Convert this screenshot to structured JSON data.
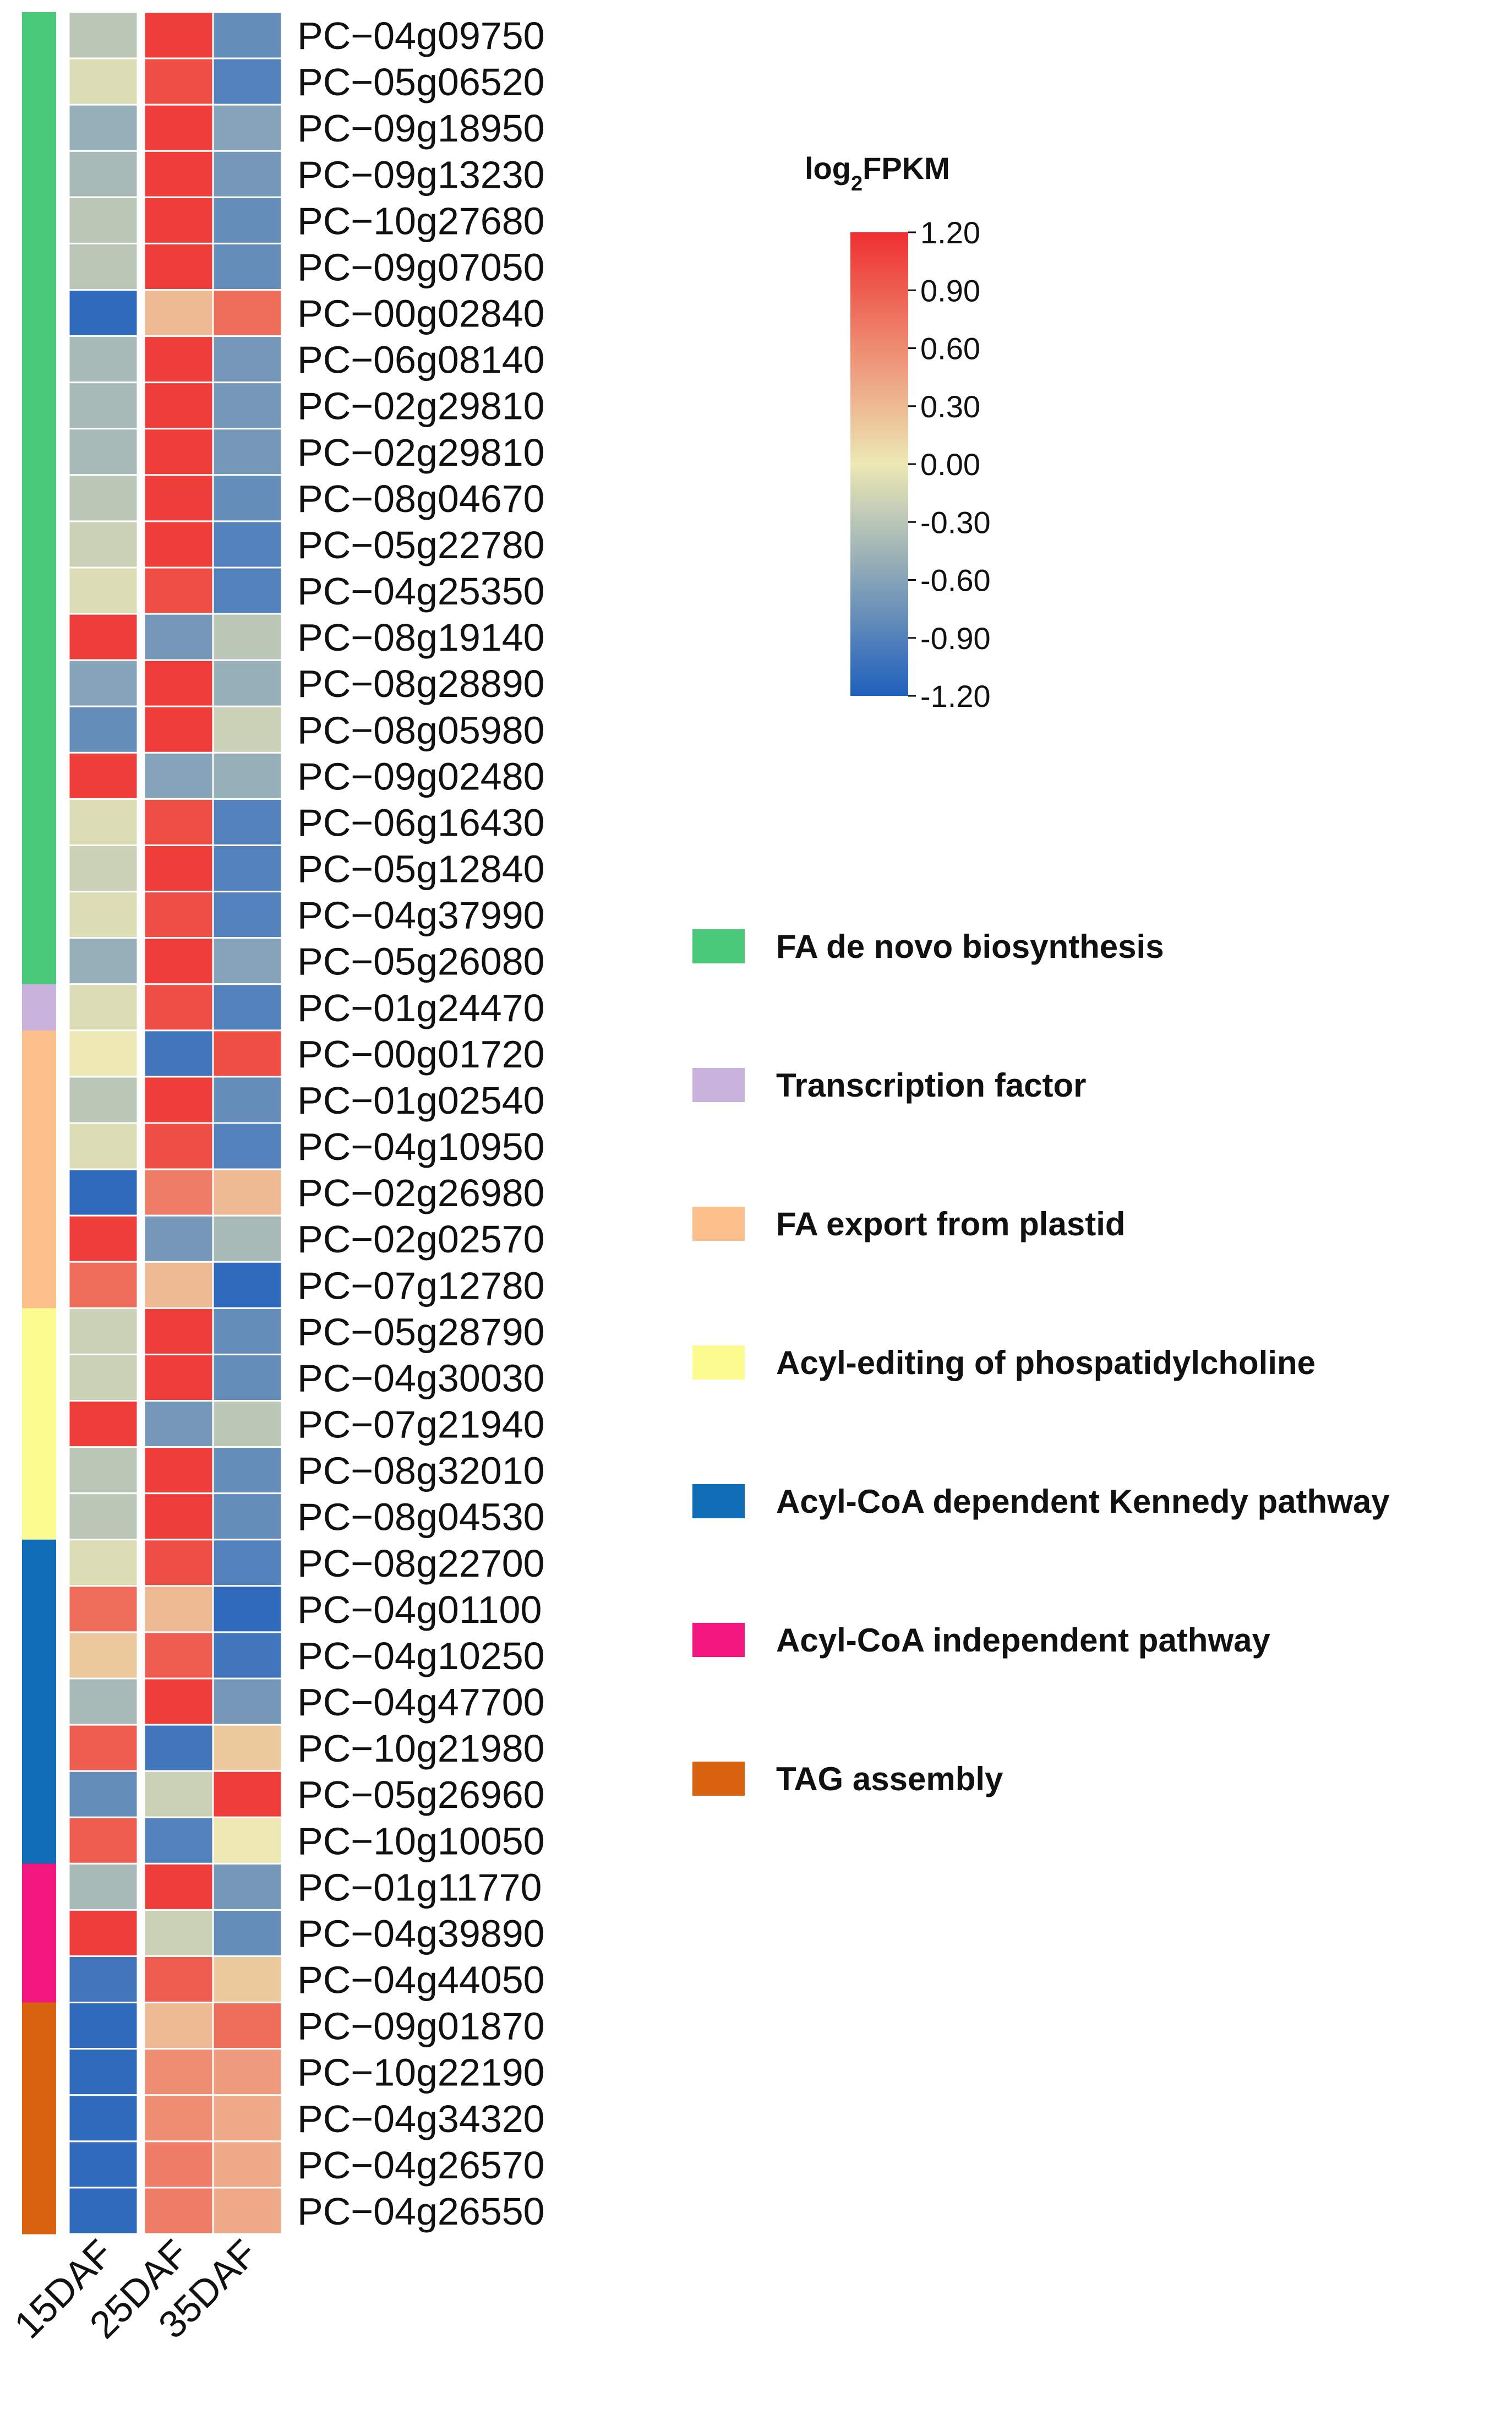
{
  "chart_data": {
    "type": "heatmap",
    "legend_title_main": "log",
    "legend_title_sub": "2",
    "legend_title_rest": "FPKM",
    "color_scale": {
      "min": -1.2,
      "max": 1.2,
      "low_color": "#1f5fbd",
      "mid_color": "#ede8b4",
      "high_color": "#ef2f2f",
      "ticks": [
        "1.20",
        "0.90",
        "0.60",
        "0.30",
        "0.00",
        "-0.30",
        "-0.60",
        "-0.90",
        "-1.20"
      ]
    },
    "columns": [
      "15DAF",
      "25DAF",
      "35DAF"
    ],
    "categories": [
      {
        "name": "FA de novo biosynthesis",
        "color": "#4ac97a"
      },
      {
        "name": "Transcription factor",
        "color": "#c9b3dc"
      },
      {
        "name": "FA export from plastid",
        "color": "#fbbf8c"
      },
      {
        "name": "Acyl-editing of phospatidylcholine",
        "color": "#fbfb90"
      },
      {
        "name": "Acyl-CoA dependent Kennedy pathway",
        "color": "#0f6db8"
      },
      {
        "name": "Acyl-CoA independent pathway",
        "color": "#f2167e"
      },
      {
        "name": "TAG assembly",
        "color": "#d9620f"
      }
    ],
    "rows": [
      {
        "gene": "PC−04g09750",
        "category": 0,
        "values": [
          -0.3,
          1.1,
          -0.8
        ]
      },
      {
        "gene": "PC−05g06520",
        "category": 0,
        "values": [
          -0.1,
          1.0,
          -0.9
        ]
      },
      {
        "gene": "PC−09g18950",
        "category": 0,
        "values": [
          -0.5,
          1.1,
          -0.6
        ]
      },
      {
        "gene": "PC−09g13230",
        "category": 0,
        "values": [
          -0.4,
          1.1,
          -0.7
        ]
      },
      {
        "gene": "PC−10g27680",
        "category": 0,
        "values": [
          -0.3,
          1.1,
          -0.8
        ]
      },
      {
        "gene": "PC−09g07050",
        "category": 0,
        "values": [
          -0.3,
          1.1,
          -0.8
        ]
      },
      {
        "gene": "PC−00g02840",
        "category": 0,
        "values": [
          -1.1,
          0.3,
          0.8
        ]
      },
      {
        "gene": "PC−06g08140",
        "category": 0,
        "values": [
          -0.4,
          1.1,
          -0.7
        ]
      },
      {
        "gene": "PC−02g29810",
        "category": 0,
        "values": [
          -0.4,
          1.1,
          -0.7
        ]
      },
      {
        "gene": "PC−02g29810",
        "category": 0,
        "values": [
          -0.4,
          1.1,
          -0.7
        ]
      },
      {
        "gene": "PC−08g04670",
        "category": 0,
        "values": [
          -0.3,
          1.1,
          -0.8
        ]
      },
      {
        "gene": "PC−05g22780",
        "category": 0,
        "values": [
          -0.2,
          1.1,
          -0.9
        ]
      },
      {
        "gene": "PC−04g25350",
        "category": 0,
        "values": [
          -0.1,
          1.0,
          -0.9
        ]
      },
      {
        "gene": "PC−08g19140",
        "category": 0,
        "values": [
          1.1,
          -0.7,
          -0.3
        ]
      },
      {
        "gene": "PC−08g28890",
        "category": 0,
        "values": [
          -0.6,
          1.1,
          -0.5
        ]
      },
      {
        "gene": "PC−08g05980",
        "category": 0,
        "values": [
          -0.8,
          1.1,
          -0.2
        ]
      },
      {
        "gene": "PC−09g02480",
        "category": 0,
        "values": [
          1.1,
          -0.6,
          -0.5
        ]
      },
      {
        "gene": "PC−06g16430",
        "category": 0,
        "values": [
          -0.1,
          1.0,
          -0.9
        ]
      },
      {
        "gene": "PC−05g12840",
        "category": 0,
        "values": [
          -0.2,
          1.1,
          -0.9
        ]
      },
      {
        "gene": "PC−04g37990",
        "category": 0,
        "values": [
          -0.1,
          1.0,
          -0.9
        ]
      },
      {
        "gene": "PC−05g26080",
        "category": 0,
        "values": [
          -0.5,
          1.1,
          -0.6
        ]
      },
      {
        "gene": "PC−01g24470",
        "category": 1,
        "values": [
          -0.1,
          1.0,
          -0.9
        ]
      },
      {
        "gene": "PC−00g01720",
        "category": 2,
        "values": [
          0.0,
          -1.0,
          1.0
        ]
      },
      {
        "gene": "PC−01g02540",
        "category": 2,
        "values": [
          -0.3,
          1.1,
          -0.8
        ]
      },
      {
        "gene": "PC−04g10950",
        "category": 2,
        "values": [
          -0.1,
          1.0,
          -0.9
        ]
      },
      {
        "gene": "PC−02g26980",
        "category": 2,
        "values": [
          -1.1,
          0.7,
          0.3
        ]
      },
      {
        "gene": "PC−02g02570",
        "category": 2,
        "values": [
          1.1,
          -0.7,
          -0.4
        ]
      },
      {
        "gene": "PC−07g12780",
        "category": 2,
        "values": [
          0.8,
          0.3,
          -1.1
        ]
      },
      {
        "gene": "PC−05g28790",
        "category": 3,
        "values": [
          -0.2,
          1.1,
          -0.8
        ]
      },
      {
        "gene": "PC−04g30030",
        "category": 3,
        "values": [
          -0.2,
          1.1,
          -0.8
        ]
      },
      {
        "gene": "PC−07g21940",
        "category": 3,
        "values": [
          1.1,
          -0.7,
          -0.3
        ]
      },
      {
        "gene": "PC−08g32010",
        "category": 3,
        "values": [
          -0.3,
          1.1,
          -0.8
        ]
      },
      {
        "gene": "PC−08g04530",
        "category": 3,
        "values": [
          -0.3,
          1.1,
          -0.8
        ]
      },
      {
        "gene": "PC−08g22700",
        "category": 4,
        "values": [
          -0.1,
          1.0,
          -0.9
        ]
      },
      {
        "gene": "PC−04g01100",
        "category": 4,
        "values": [
          0.8,
          0.3,
          -1.1
        ]
      },
      {
        "gene": "PC−04g10250",
        "category": 4,
        "values": [
          0.2,
          0.9,
          -1.0
        ]
      },
      {
        "gene": "PC−04g47700",
        "category": 4,
        "values": [
          -0.4,
          1.1,
          -0.7
        ]
      },
      {
        "gene": "PC−10g21980",
        "category": 4,
        "values": [
          0.9,
          -1.0,
          0.2
        ]
      },
      {
        "gene": "PC−05g26960",
        "category": 4,
        "values": [
          -0.8,
          -0.2,
          1.1
        ]
      },
      {
        "gene": "PC−10g10050",
        "category": 4,
        "values": [
          0.9,
          -0.9,
          0.0
        ]
      },
      {
        "gene": "PC−01g11770",
        "category": 5,
        "values": [
          -0.4,
          1.1,
          -0.7
        ]
      },
      {
        "gene": "PC−04g39890",
        "category": 5,
        "values": [
          1.1,
          -0.2,
          -0.8
        ]
      },
      {
        "gene": "PC−04g44050",
        "category": 5,
        "values": [
          -1.0,
          0.9,
          0.2
        ]
      },
      {
        "gene": "PC−09g01870",
        "category": 6,
        "values": [
          -1.1,
          0.3,
          0.8
        ]
      },
      {
        "gene": "PC−10g22190",
        "category": 6,
        "values": [
          -1.1,
          0.6,
          0.5
        ]
      },
      {
        "gene": "PC−04g34320",
        "category": 6,
        "values": [
          -1.1,
          0.6,
          0.4
        ]
      },
      {
        "gene": "PC−04g26570",
        "category": 6,
        "values": [
          -1.1,
          0.7,
          0.4
        ]
      },
      {
        "gene": "PC−04g26550",
        "category": 6,
        "values": [
          -1.1,
          0.7,
          0.4
        ]
      }
    ]
  }
}
